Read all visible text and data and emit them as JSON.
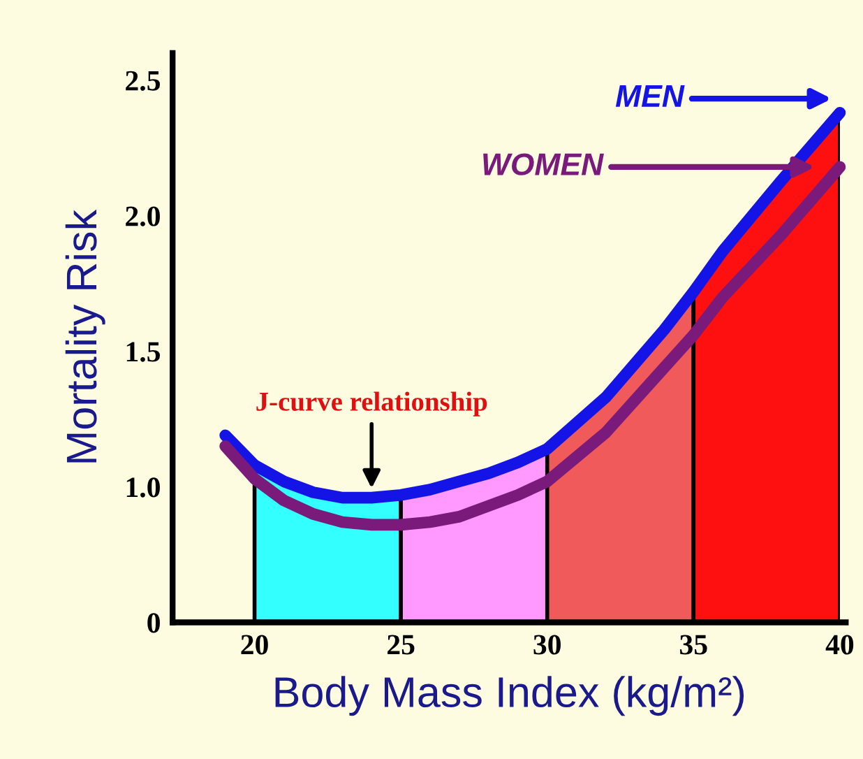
{
  "chart_data": {
    "type": "line",
    "xlabel": "Body Mass Index (kg/m²)",
    "ylabel": "Mortality Risk",
    "x": [
      19,
      20,
      21,
      22,
      23,
      24,
      25,
      26,
      27,
      28,
      29,
      30,
      32,
      34,
      35,
      36,
      38,
      40
    ],
    "series": [
      {
        "name": "MEN",
        "color": "#1414e6",
        "values": [
          1.19,
          1.08,
          1.02,
          0.98,
          0.96,
          0.96,
          0.97,
          0.99,
          1.02,
          1.05,
          1.09,
          1.14,
          1.33,
          1.58,
          1.72,
          1.87,
          2.13,
          2.38
        ]
      },
      {
        "name": "WOMEN",
        "color": "#7a1a7a",
        "values": [
          1.15,
          1.03,
          0.95,
          0.9,
          0.87,
          0.86,
          0.86,
          0.87,
          0.89,
          0.93,
          0.97,
          1.02,
          1.2,
          1.44,
          1.56,
          1.7,
          1.93,
          2.18
        ]
      }
    ],
    "bands": [
      {
        "axis": "x",
        "from": 20,
        "to": 25,
        "color": "#33ffff"
      },
      {
        "axis": "x",
        "from": 25,
        "to": 30,
        "color": "#ff99ff"
      },
      {
        "axis": "x",
        "from": 30,
        "to": 35,
        "color": "#f05a5a"
      },
      {
        "axis": "x",
        "from": 35,
        "to": 40,
        "color": "#ff1010"
      }
    ],
    "annotations": [
      {
        "text": "J-curve relationship",
        "x": 24,
        "y": 0.96
      }
    ],
    "xlim": [
      17.2,
      40.2
    ],
    "ylim": [
      0.5,
      2.6
    ],
    "xticks": [
      20,
      25,
      30,
      35,
      40
    ],
    "yticks": [
      {
        "value": 0.5,
        "label": "0"
      },
      {
        "value": 1.0,
        "label": "1.0"
      },
      {
        "value": 1.5,
        "label": "1.5"
      },
      {
        "value": 2.0,
        "label": "2.0"
      },
      {
        "value": 2.5,
        "label": "2.5"
      }
    ],
    "grid": false,
    "legend": "top right",
    "marker": "none",
    "line_style": "solid"
  }
}
